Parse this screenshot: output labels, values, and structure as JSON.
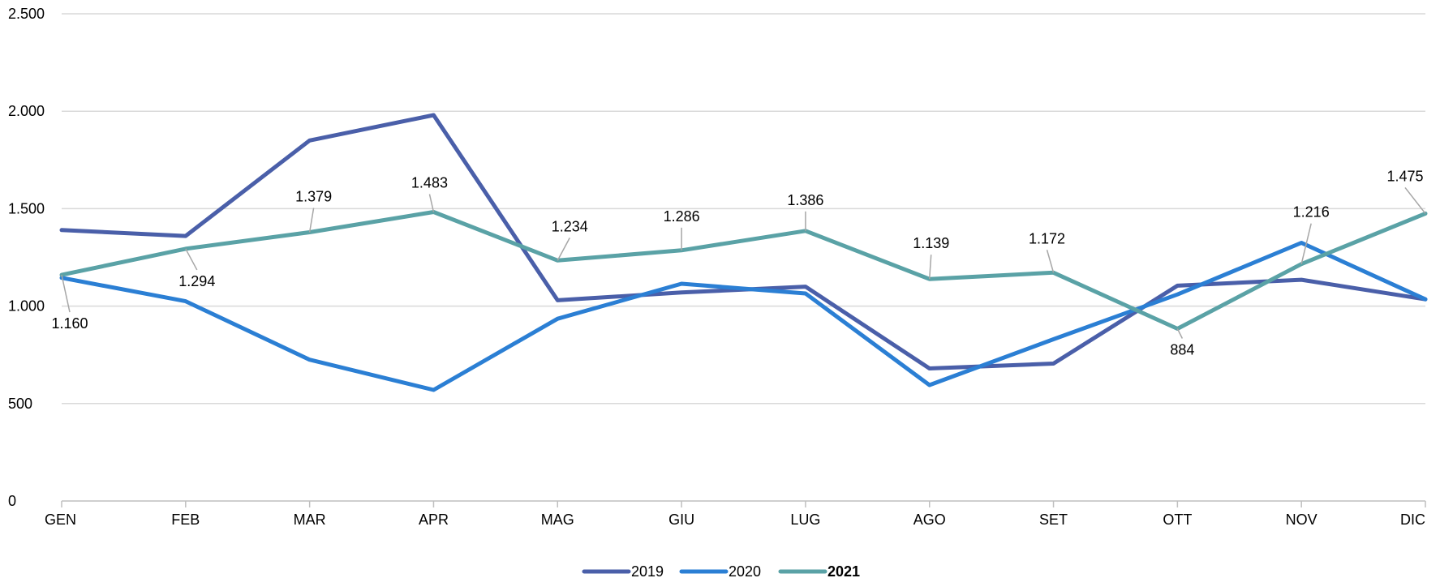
{
  "chart_data": {
    "type": "line",
    "categories": [
      "GEN",
      "FEB",
      "MAR",
      "APR",
      "MAG",
      "GIU",
      "LUG",
      "AGO",
      "SET",
      "OTT",
      "NOV",
      "DIC"
    ],
    "ylim": [
      0,
      2500
    ],
    "yticks": [
      0,
      500,
      1000,
      1500,
      2000,
      2500
    ],
    "ytick_labels": [
      "0",
      "500",
      "1.000",
      "1.500",
      "2.000",
      "2.500"
    ],
    "grid": true,
    "legend_position": "bottom",
    "series": [
      {
        "name": "2019",
        "color": "#4a5fa9",
        "values": [
          1390,
          1360,
          1850,
          1980,
          1030,
          1070,
          1100,
          680,
          705,
          1105,
          1135,
          1035
        ]
      },
      {
        "name": "2020",
        "color": "#2b7fd4",
        "values": [
          1145,
          1025,
          725,
          570,
          935,
          1115,
          1065,
          595,
          830,
          1060,
          1325,
          1035
        ]
      },
      {
        "name": "2021",
        "color": "#5aa2a6",
        "values": [
          1160,
          1294,
          1379,
          1483,
          1234,
          1286,
          1386,
          1139,
          1172,
          884,
          1216,
          1475
        ],
        "data_labels": [
          "1.160",
          "1.294",
          "1.379",
          "1.483",
          "1.234",
          "1.286",
          "1.386",
          "1.139",
          "1.172",
          "884",
          "1.216",
          "1.475"
        ]
      }
    ]
  }
}
